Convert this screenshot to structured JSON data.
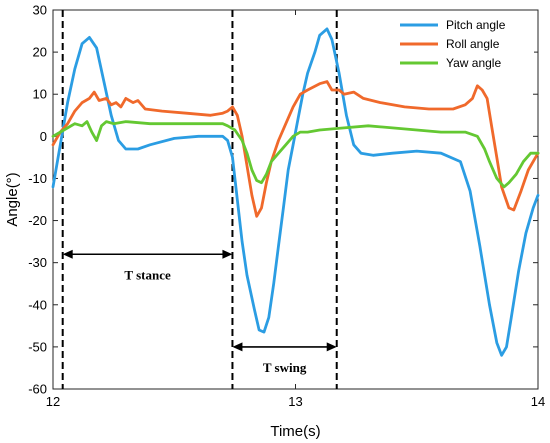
{
  "chart_data": {
    "type": "line",
    "xlabel": "Time(s)",
    "ylabel": "Angle(°)",
    "xlim": [
      12,
      14
    ],
    "ylim": [
      -60,
      30
    ],
    "xticks": [
      12,
      13,
      14
    ],
    "yticks": [
      -60,
      -50,
      -40,
      -30,
      -20,
      -10,
      0,
      10,
      20,
      30
    ],
    "grid": false,
    "legend_position": "top-right",
    "series": [
      {
        "name": "Pitch angle",
        "color": "#2b9de3",
        "points": [
          [
            12.0,
            -12
          ],
          [
            12.03,
            -2
          ],
          [
            12.06,
            8
          ],
          [
            12.09,
            16
          ],
          [
            12.12,
            22
          ],
          [
            12.15,
            23.5
          ],
          [
            12.18,
            21
          ],
          [
            12.21,
            13
          ],
          [
            12.24,
            5
          ],
          [
            12.27,
            -1
          ],
          [
            12.3,
            -3
          ],
          [
            12.35,
            -3
          ],
          [
            12.4,
            -2
          ],
          [
            12.5,
            -0.5
          ],
          [
            12.6,
            0
          ],
          [
            12.7,
            0
          ],
          [
            12.72,
            -1
          ],
          [
            12.74,
            -5
          ],
          [
            12.76,
            -15
          ],
          [
            12.78,
            -25
          ],
          [
            12.8,
            -33
          ],
          [
            12.83,
            -41
          ],
          [
            12.85,
            -46
          ],
          [
            12.87,
            -46.5
          ],
          [
            12.89,
            -43
          ],
          [
            12.91,
            -35
          ],
          [
            12.93,
            -26
          ],
          [
            12.95,
            -17
          ],
          [
            12.97,
            -8
          ],
          [
            12.99,
            -2
          ],
          [
            13.01,
            4
          ],
          [
            13.03,
            10
          ],
          [
            13.05,
            15
          ],
          [
            13.08,
            20
          ],
          [
            13.1,
            24
          ],
          [
            13.13,
            25.5
          ],
          [
            13.15,
            23
          ],
          [
            13.18,
            15
          ],
          [
            13.21,
            5
          ],
          [
            13.24,
            -2
          ],
          [
            13.27,
            -4
          ],
          [
            13.32,
            -4.5
          ],
          [
            13.4,
            -4
          ],
          [
            13.5,
            -3.5
          ],
          [
            13.6,
            -4
          ],
          [
            13.68,
            -6
          ],
          [
            13.72,
            -13
          ],
          [
            13.76,
            -26
          ],
          [
            13.8,
            -40
          ],
          [
            13.83,
            -49
          ],
          [
            13.85,
            -52
          ],
          [
            13.87,
            -50
          ],
          [
            13.89,
            -43
          ],
          [
            13.92,
            -32
          ],
          [
            13.95,
            -23
          ],
          [
            13.98,
            -17
          ],
          [
            14.0,
            -14
          ]
        ]
      },
      {
        "name": "Roll angle",
        "color": "#f0692b",
        "points": [
          [
            12.0,
            -2
          ],
          [
            12.03,
            1
          ],
          [
            12.06,
            3
          ],
          [
            12.09,
            6
          ],
          [
            12.12,
            8
          ],
          [
            12.15,
            9
          ],
          [
            12.17,
            10.5
          ],
          [
            12.19,
            8.5
          ],
          [
            12.22,
            9
          ],
          [
            12.24,
            7.5
          ],
          [
            12.26,
            8
          ],
          [
            12.28,
            7
          ],
          [
            12.3,
            9
          ],
          [
            12.33,
            8
          ],
          [
            12.35,
            8.5
          ],
          [
            12.38,
            6.5
          ],
          [
            12.45,
            6
          ],
          [
            12.55,
            5.5
          ],
          [
            12.65,
            5
          ],
          [
            12.7,
            5.5
          ],
          [
            12.72,
            6
          ],
          [
            12.74,
            7
          ],
          [
            12.76,
            5
          ],
          [
            12.78,
            0
          ],
          [
            12.8,
            -7
          ],
          [
            12.82,
            -14
          ],
          [
            12.84,
            -19
          ],
          [
            12.86,
            -17
          ],
          [
            12.88,
            -11
          ],
          [
            12.9,
            -6
          ],
          [
            12.93,
            -1
          ],
          [
            12.96,
            3
          ],
          [
            12.99,
            7
          ],
          [
            13.02,
            10
          ],
          [
            13.05,
            11
          ],
          [
            13.1,
            12.5
          ],
          [
            13.13,
            13
          ],
          [
            13.15,
            11
          ],
          [
            13.18,
            11
          ],
          [
            13.2,
            10
          ],
          [
            13.24,
            10.5
          ],
          [
            13.28,
            9
          ],
          [
            13.35,
            8
          ],
          [
            13.45,
            7
          ],
          [
            13.55,
            6.5
          ],
          [
            13.65,
            6.5
          ],
          [
            13.7,
            7.5
          ],
          [
            13.73,
            9
          ],
          [
            13.75,
            12
          ],
          [
            13.77,
            11
          ],
          [
            13.79,
            9
          ],
          [
            13.81,
            2
          ],
          [
            13.83,
            -5
          ],
          [
            13.85,
            -12
          ],
          [
            13.88,
            -17
          ],
          [
            13.9,
            -17.5
          ],
          [
            13.93,
            -13
          ],
          [
            13.96,
            -8
          ],
          [
            14.0,
            -4
          ]
        ]
      },
      {
        "name": "Yaw angle",
        "color": "#64c832",
        "points": [
          [
            12.0,
            0
          ],
          [
            12.03,
            1
          ],
          [
            12.06,
            2
          ],
          [
            12.09,
            3
          ],
          [
            12.12,
            2.5
          ],
          [
            12.14,
            3.5
          ],
          [
            12.16,
            1
          ],
          [
            12.18,
            -1
          ],
          [
            12.2,
            2.5
          ],
          [
            12.22,
            3.5
          ],
          [
            12.25,
            3
          ],
          [
            12.3,
            3.5
          ],
          [
            12.4,
            3
          ],
          [
            12.5,
            3
          ],
          [
            12.6,
            3
          ],
          [
            12.7,
            3
          ],
          [
            12.72,
            2.5
          ],
          [
            12.75,
            1.5
          ],
          [
            12.78,
            -1
          ],
          [
            12.8,
            -4
          ],
          [
            12.82,
            -8
          ],
          [
            12.84,
            -10.5
          ],
          [
            12.86,
            -11
          ],
          [
            12.88,
            -9
          ],
          [
            12.9,
            -6
          ],
          [
            12.93,
            -4
          ],
          [
            12.96,
            -2
          ],
          [
            12.99,
            0
          ],
          [
            13.02,
            1
          ],
          [
            13.05,
            1
          ],
          [
            13.1,
            1.5
          ],
          [
            13.2,
            2
          ],
          [
            13.3,
            2.5
          ],
          [
            13.4,
            2
          ],
          [
            13.5,
            1.5
          ],
          [
            13.6,
            1
          ],
          [
            13.7,
            1
          ],
          [
            13.75,
            0
          ],
          [
            13.78,
            -3
          ],
          [
            13.8,
            -6
          ],
          [
            13.83,
            -10
          ],
          [
            13.86,
            -12
          ],
          [
            13.88,
            -11
          ],
          [
            13.91,
            -9
          ],
          [
            13.94,
            -6
          ],
          [
            13.97,
            -4
          ],
          [
            14.0,
            -4
          ]
        ]
      }
    ],
    "vlines": [
      12.04,
      12.74,
      13.17
    ],
    "annotations": [
      {
        "label": "T stance",
        "x1": 12.04,
        "x2": 12.74,
        "y": -28,
        "label_x": 12.39,
        "label_y": -33
      },
      {
        "label": "T swing",
        "x1": 12.74,
        "x2": 13.17,
        "y": -50,
        "label_x": 12.955,
        "label_y": -55
      }
    ]
  }
}
